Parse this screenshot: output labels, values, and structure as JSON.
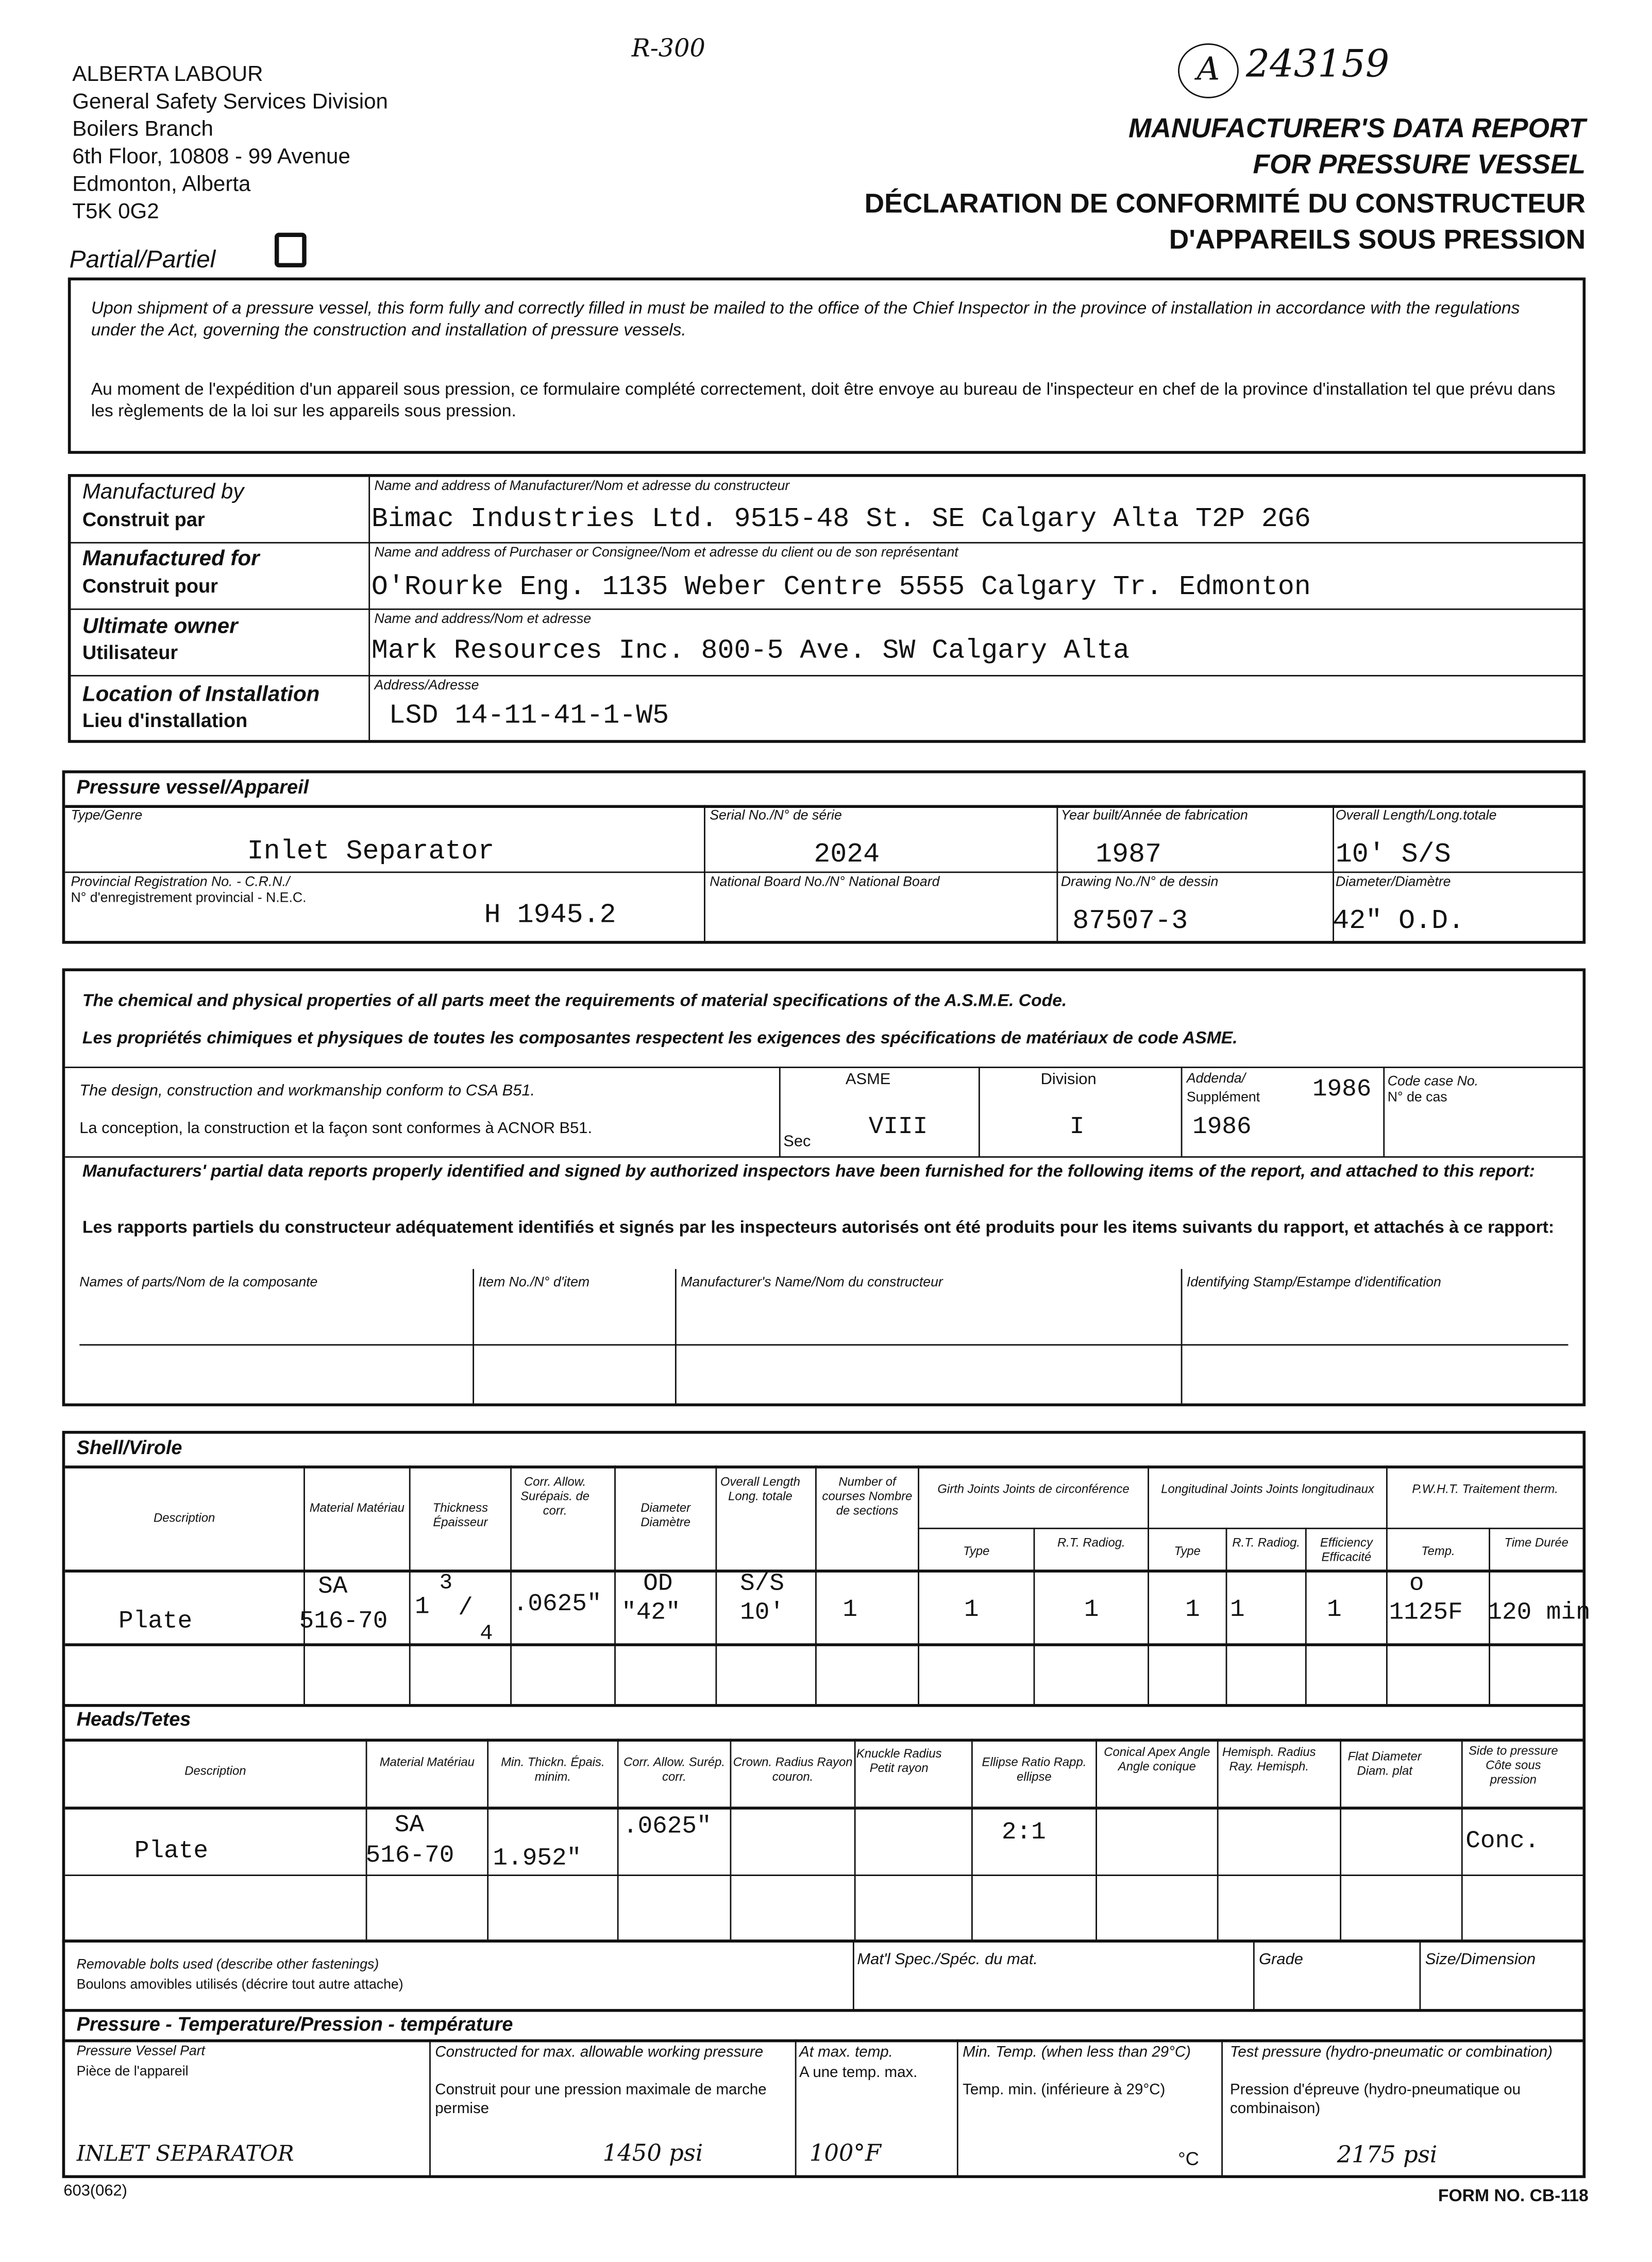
{
  "header": {
    "org_lines": [
      "ALBERTA LABOUR",
      "General Safety Services Division",
      "Boilers Branch",
      "6th Floor, 10808 - 99 Avenue",
      "Edmonton, Alberta",
      "T5K 0G2"
    ],
    "handwritten_ref": "R-300",
    "handwritten_number_circled": "A",
    "handwritten_number": "243159",
    "title_en_1": "MANUFACTURER'S DATA REPORT",
    "title_en_2": "FOR PRESSURE VESSEL",
    "title_fr_1": "DÉCLARATION DE CONFORMITÉ DU CONSTRUCTEUR",
    "title_fr_2": "D'APPAREILS SOUS PRESSION",
    "partial_label": "Partial/Partiel",
    "partial_checked": false
  },
  "notice": {
    "en": "Upon shipment of a pressure vessel, this form fully and correctly filled in must be mailed to the office of the Chief Inspector in the province of installation in accordance with the regulations under the Act, governing the construction and installation of pressure vessels.",
    "fr": "Au moment de l'expédition d'un appareil sous pression, ce formulaire complété correctement, doit être envoye au bureau de l'inspecteur en chef de la province d'installation tel que prévu dans les règlements de la loi sur les appareils sous pression."
  },
  "parties": [
    {
      "label_en": "Manufactured by",
      "label_fr": "Construit par",
      "field_label": "Name and address of Manufacturer/Nom et adresse du constructeur",
      "value": "Bimac Industries Ltd. 9515-48 St. SE Calgary Alta T2P 2G6"
    },
    {
      "label_en": "Manufactured for",
      "label_fr": "Construit pour",
      "field_label": "Name and address of Purchaser or Consignee/Nom et adresse du client ou de son représentant",
      "value": "O'Rourke Eng. 1135 Weber Centre 5555 Calgary Tr. Edmonton"
    },
    {
      "label_en": "Ultimate owner",
      "label_fr": "Utilisateur",
      "field_label": "Name and address/Nom et adresse",
      "value": "Mark Resources Inc. 800-5 Ave. SW Calgary Alta"
    },
    {
      "label_en": "Location of Installation",
      "label_fr": "Lieu d'installation",
      "field_label": "Address/Adresse",
      "value": "LSD 14-11-41-1-W5"
    }
  ],
  "vessel": {
    "section_title": "Pressure vessel/Appareil",
    "type_label": "Type/Genre",
    "type_value": "Inlet Separator",
    "serial_label": "Serial No./N° de série",
    "serial_value": "2024",
    "year_label": "Year built/Année de fabrication",
    "year_value": "1987",
    "length_label": "Overall Length/Long.totale",
    "length_value": "10' S/S",
    "crn_label_1": "Provincial Registration No. - C.R.N./",
    "crn_label_2": "N° d'enregistrement provincial - N.E.C.",
    "crn_value": "H 1945.2",
    "nb_label": "National Board No./N° National Board",
    "nb_value": "",
    "drawing_label": "Drawing No./N° de dessin",
    "drawing_value": "87507-3",
    "diameter_label": "Diameter/Diamètre",
    "diameter_value": "42\" O.D."
  },
  "materials": {
    "statement_en": "The chemical and physical properties of all parts meet the requirements of material specifications of the A.S.M.E. Code.",
    "statement_fr": "Les propriétés chimiques et physiques de toutes les composantes respectent les exigences des spécifications de matériaux de code ASME.",
    "design_en": "The design, construction and workmanship conform to CSA B51.",
    "design_fr": "La conception, la construction et la façon sont conformes à ACNOR B51.",
    "asme_label": "ASME",
    "sec_label": "Sec",
    "sec_value": "VIII",
    "division_label": "Division",
    "division_value": "I",
    "addenda_label_1": "Addenda/",
    "addenda_label_2": "Supplément",
    "addenda_value_1": "1986",
    "addenda_value_2": "1986",
    "code_case_label_1": "Code case No.",
    "code_case_label_2": "N° de cas",
    "code_case_value": "",
    "partial_reports_en": "Manufacturers' partial data reports properly identified and signed by authorized inspectors have been furnished for the following items of the report, and attached to this report:",
    "partial_reports_fr": "Les rapports partiels du constructeur adéquatement identifiés et signés par les inspecteurs autorisés ont été produits pour les items suivants du rapport, et attachés à ce rapport:",
    "columns": [
      "Names of parts/Nom de la composante",
      "Item No./N° d'item",
      "Manufacturer's Name/Nom du constructeur",
      "Identifying Stamp/Estampe d'identification"
    ]
  },
  "shell": {
    "section_title": "Shell/Virole",
    "headers": {
      "description": "Description",
      "material": "Material Matériau",
      "thickness": "Thickness Épaisseur",
      "corr": "Corr. Allow. Surépais. de corr.",
      "diameter": "Diameter Diamètre",
      "length": "Overall Length Long. totale",
      "courses": "Number of courses Nombre de sections",
      "girth": "Girth Joints Joints de circonférence",
      "longit": "Longitudinal Joints Joints longitudinaux",
      "pwht": "P.W.H.T. Traitement therm.",
      "girth_type": "Type",
      "girth_rt": "R.T. Radiog.",
      "long_type": "Type",
      "long_rt": "R.T. Radiog.",
      "efficiency": "Efficiency Efficacité",
      "temp": "Temp.",
      "time": "Time Durée"
    },
    "row": {
      "description": "Plate",
      "material_1": "SA",
      "material_2": "516-70",
      "thickness_whole": "1",
      "thickness_num": "3",
      "thickness_den": "4",
      "corr": ".0625\"",
      "diameter_note": "OD",
      "diameter": "\"42\"",
      "length_note": "S/S",
      "length": "10'",
      "courses": "1",
      "girth_type": "1",
      "girth_rt": "1",
      "long_type": "1",
      "long_rt": "1",
      "efficiency": "1",
      "temp_deg": "o",
      "temp": "1125F",
      "time": "120 min"
    }
  },
  "heads": {
    "section_title": "Heads/Tetes",
    "headers": {
      "description": "Description",
      "material": "Material Matériau",
      "min_thk": "Min. Thickn. Épais. minim.",
      "corr": "Corr. Allow. Surép. corr.",
      "crown": "Crown. Radius Rayon couron.",
      "knuckle": "Knuckle Radius Petit rayon",
      "ellipse": "Ellipse Ratio Rapp. ellipse",
      "conical": "Conical Apex Angle Angle conique",
      "hemi": "Hemisph. Radius Ray. Hemisph.",
      "flat": "Flat Diameter Diam. plat",
      "side": "Side to pressure Côte sous pression"
    },
    "row": {
      "description": "Plate",
      "material_1": "SA",
      "material_2": "516-70",
      "min_thk": "1.952\"",
      "corr": ".0625\"",
      "ellipse": "2:1",
      "side": "Conc."
    }
  },
  "bolts": {
    "label_en": "Removable bolts used (describe other fastenings)",
    "label_fr": "Boulons amovibles utilisés (décrire tout autre attache)",
    "spec_label": "Mat'l Spec./Spéc. du mat.",
    "grade_label": "Grade",
    "size_label": "Size/Dimension"
  },
  "pressure": {
    "section_title": "Pressure - Temperature/Pression - température",
    "part_label_1": "Pressure Vessel Part",
    "part_label_2": "Pièce de l'appareil",
    "part_value": "INLET SEPARATOR",
    "mawp_label_en": "Constructed for max. allowable working pressure",
    "mawp_label_fr": "Construit pour une pression maximale de marche permise",
    "mawp_value": "1450 psi",
    "temp_label_1": "At max. temp.",
    "temp_label_2": "A une temp. max.",
    "temp_value": "100°F",
    "min_temp_label_en": "Min. Temp. (when less than 29°C)",
    "min_temp_label_fr": "Temp. min. (inférieure à 29°C)",
    "min_temp_unit": "°C",
    "test_label_en": "Test pressure (hydro-pneumatic or combination)",
    "test_label_fr": "Pression d'épreuve (hydro-pneumatique ou combinaison)",
    "test_value": "2175 psi"
  },
  "footer": {
    "left": "603(062)",
    "right": "FORM NO. CB-118"
  }
}
